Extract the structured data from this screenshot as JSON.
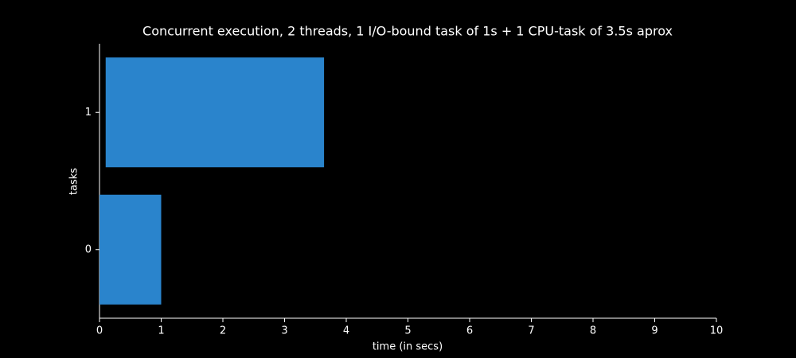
{
  "chart_data": {
    "type": "gantt",
    "title": "Concurrent execution, 2 threads, 1 I/O-bound task of 1s + 1 CPU-task of 3.5s aprox",
    "x_label": "time (in secs)",
    "y_label": "tasks",
    "categories": [
      "0",
      "1"
    ],
    "starts": [
      0,
      0.1
    ],
    "ends": [
      1,
      3.64
    ],
    "color": "#2a84cc",
    "xlim": [
      0,
      10
    ],
    "xticks": [
      0,
      1,
      2,
      3,
      4,
      5,
      6,
      7,
      8,
      9,
      10
    ]
  }
}
